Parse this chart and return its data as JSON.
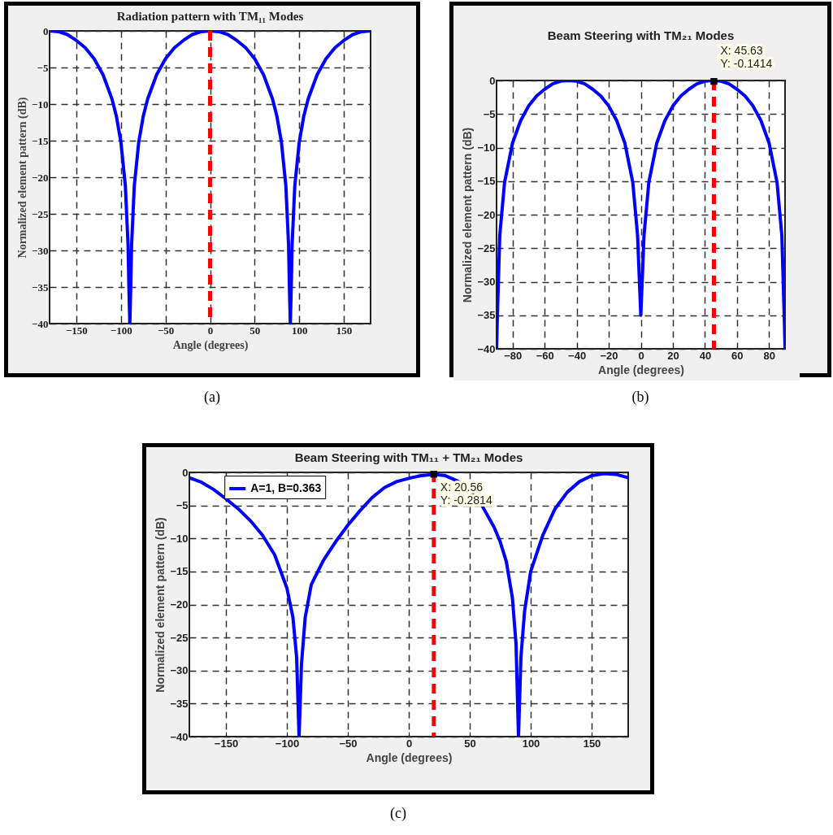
{
  "chart_data": [
    {
      "type": "line",
      "title": "Radiation pattern  with TM₁₁ Modes",
      "xlabel": "Angle (degrees)",
      "ylabel": "Normalized element pattern (dB)",
      "x": [
        -180,
        -170,
        -160,
        -150,
        -140,
        -130,
        -120,
        -110,
        -105,
        -100,
        -95,
        -92,
        -91,
        -90,
        -89,
        -88,
        -85,
        -80,
        -75,
        -70,
        -60,
        -50,
        -40,
        -30,
        -20,
        -10,
        0,
        10,
        20,
        30,
        40,
        50,
        60,
        70,
        75,
        80,
        85,
        88,
        89,
        90,
        91,
        92,
        95,
        100,
        105,
        110,
        120,
        130,
        140,
        150,
        160,
        170,
        180
      ],
      "series": [
        {
          "color": "#0000ff",
          "values": [
            0,
            -0.1,
            -0.5,
            -1.3,
            -2.3,
            -3.8,
            -6,
            -9.3,
            -11.7,
            -15.2,
            -21.2,
            -29.2,
            -35.2,
            -40,
            -35.2,
            -29.2,
            -21.2,
            -15.2,
            -11.7,
            -9.3,
            -6,
            -3.8,
            -2.3,
            -1.3,
            -0.5,
            -0.1,
            0,
            -0.1,
            -0.5,
            -1.3,
            -2.3,
            -3.8,
            -6,
            -9.3,
            -11.7,
            -15.2,
            -21.2,
            -29.2,
            -35.2,
            -40,
            -35.2,
            -29.2,
            -21.2,
            -15.2,
            -11.7,
            -9.3,
            -6,
            -3.8,
            -2.3,
            -1.3,
            -0.5,
            -0.1,
            0
          ]
        }
      ],
      "xlim": [
        -180,
        180
      ],
      "ylim": [
        -40,
        0
      ],
      "xticks": [
        -150,
        -100,
        -50,
        0,
        50,
        100,
        150
      ],
      "yticks": [
        -40,
        -35,
        -30,
        -25,
        -20,
        -15,
        -10,
        -5,
        0
      ],
      "grid": true,
      "marker": "none",
      "line_style": "solid",
      "ref_lines": [
        {
          "axis": "x",
          "value": 0,
          "color": "#ff0000",
          "line_style": "dashed"
        }
      ],
      "annotations": [
        "(a)"
      ]
    },
    {
      "type": "line",
      "title": "Beam Steering with TM₂₁ Modes",
      "xlabel": "Angle (degrees)",
      "ylabel": "Normalized element pattern (dB)",
      "x": [
        -90,
        -89.5,
        -88,
        -85,
        -80,
        -75,
        -70,
        -65,
        -60,
        -55,
        -50,
        -45,
        -40,
        -35,
        -30,
        -25,
        -20,
        -15,
        -10,
        -5,
        -2,
        -1,
        0,
        1,
        2,
        5,
        10,
        15,
        20,
        25,
        30,
        35,
        40,
        45,
        50,
        55,
        60,
        65,
        70,
        75,
        80,
        85,
        88,
        89.5,
        90
      ],
      "series": [
        {
          "color": "#0000ff",
          "values": [
            -40,
            -35.2,
            -23.1,
            -15.2,
            -9.3,
            -6,
            -3.8,
            -2.3,
            -1.3,
            -0.5,
            -0.1,
            0,
            -0.1,
            -0.5,
            -1.3,
            -2.3,
            -3.8,
            -6,
            -9.3,
            -15.2,
            -23.1,
            -29.1,
            -35,
            -29.1,
            -23.1,
            -15.2,
            -9.3,
            -6,
            -3.8,
            -2.3,
            -1.3,
            -0.5,
            -0.1,
            0,
            -0.1,
            -0.5,
            -1.3,
            -2.3,
            -3.8,
            -6,
            -9.3,
            -15.2,
            -23.1,
            -35.2,
            -40
          ]
        }
      ],
      "xlim": [
        -90,
        90
      ],
      "ylim": [
        -40,
        0
      ],
      "xticks": [
        -80,
        -60,
        -40,
        -20,
        0,
        20,
        40,
        60,
        80
      ],
      "yticks": [
        -40,
        -35,
        -30,
        -25,
        -20,
        -15,
        -10,
        -5,
        0
      ],
      "grid": true,
      "marker": "none",
      "line_style": "solid",
      "ref_lines": [
        {
          "axis": "x",
          "value": 45.63,
          "color": "#ff0000",
          "line_style": "dashed"
        }
      ],
      "annotations": [
        {
          "text": "X: 45.63\nY: -0.1414",
          "x": 45.63,
          "y": -0.1414
        },
        "(b)"
      ]
    },
    {
      "type": "line",
      "title": "Beam Steering with TM₁₁ + TM₂₁ Modes",
      "xlabel": "Angle (degrees)",
      "ylabel": "Normalized element pattern (dB)",
      "x": [
        -180,
        -170,
        -160,
        -150,
        -140,
        -130,
        -120,
        -110,
        -100,
        -95,
        -92,
        -90,
        -88,
        -85,
        -80,
        -70,
        -60,
        -50,
        -40,
        -30,
        -20,
        -10,
        0,
        10,
        20.56,
        30,
        40,
        50,
        60,
        70,
        75,
        80,
        85,
        88,
        90,
        92,
        95,
        100,
        110,
        120,
        130,
        140,
        150,
        160,
        170,
        180
      ],
      "series": [
        {
          "name": "A=1, B=0.363",
          "color": "#0000ff",
          "values": [
            -0.8,
            -1.5,
            -2.6,
            -4,
            -5.5,
            -7.3,
            -9.5,
            -12.5,
            -17.5,
            -22,
            -28,
            -40,
            -29,
            -22,
            -17,
            -13.3,
            -10.5,
            -8,
            -5.8,
            -3.8,
            -2.3,
            -1.4,
            -0.9,
            -0.5,
            -0.3,
            -0.5,
            -1.3,
            -2.8,
            -5,
            -8.3,
            -10.5,
            -13.5,
            -19,
            -26,
            -40,
            -28,
            -21,
            -15,
            -9.5,
            -5.5,
            -3,
            -1.4,
            -0.5,
            -0.2,
            -0.3,
            -0.8
          ]
        }
      ],
      "xlim": [
        -180,
        180
      ],
      "ylim": [
        -40,
        0
      ],
      "xticks": [
        -150,
        -100,
        -50,
        0,
        50,
        100,
        150
      ],
      "yticks": [
        -40,
        -35,
        -30,
        -25,
        -20,
        -15,
        -10,
        -5,
        0
      ],
      "grid": true,
      "marker": "none",
      "line_style": "solid",
      "legend": "top left",
      "ref_lines": [
        {
          "axis": "x",
          "value": 20.56,
          "color": "#ff0000",
          "line_style": "dashed"
        }
      ],
      "annotations": [
        {
          "text": "X: 20.56\nY: -0.2814",
          "x": 20.56,
          "y": -0.2814
        },
        "(c)"
      ]
    }
  ]
}
